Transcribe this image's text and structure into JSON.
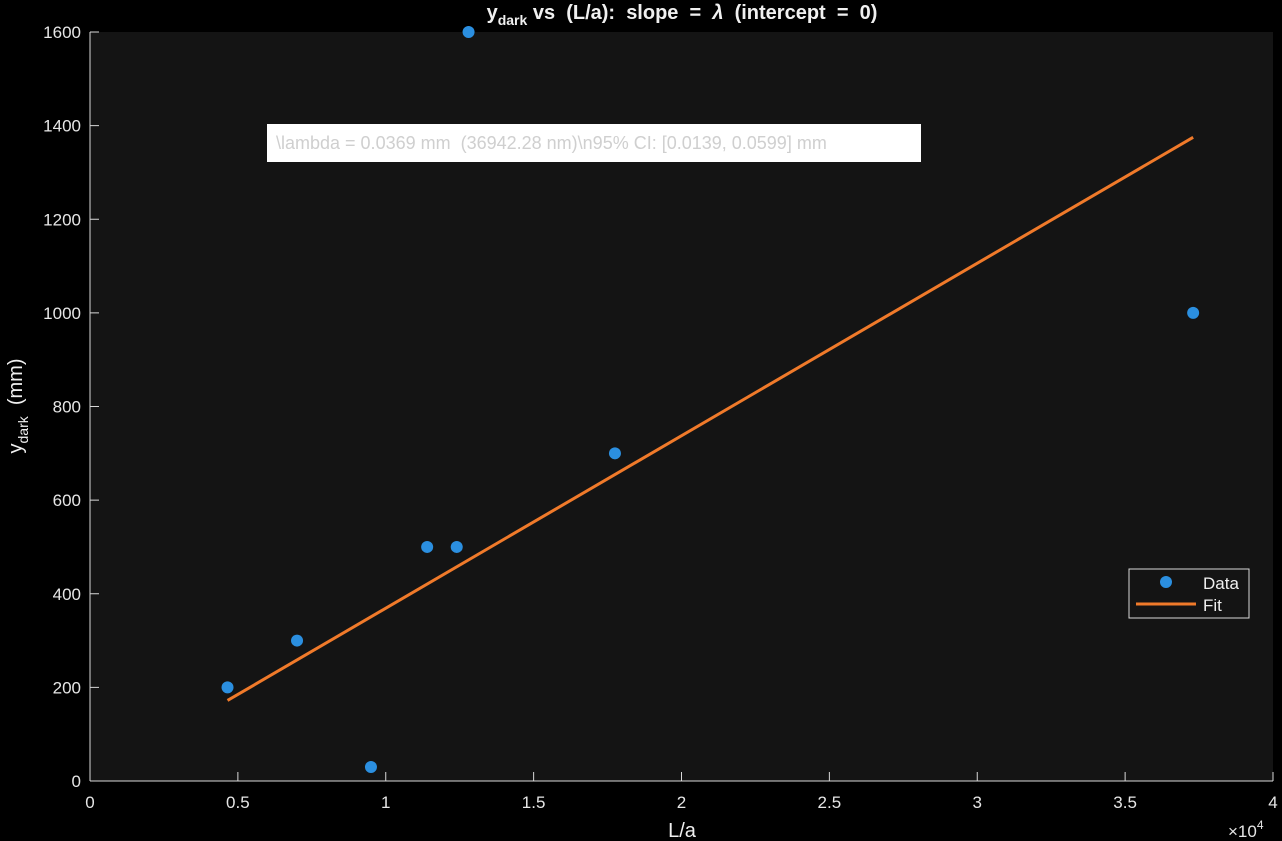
{
  "chart_data": {
    "type": "scatter",
    "title": {
      "var": "y",
      "sub": "dark",
      "rest": " vs  (L/a):  slope  =  ",
      "symbol": "λ",
      "tail": "  (intercept  =  0)"
    },
    "xlabel": "L/a",
    "ylabel": {
      "var": "y",
      "sub": "dark",
      "rest": "  (mm)"
    },
    "x_exponent_label": {
      "base": "×10",
      "exp": "4"
    },
    "xlim": [
      0,
      40000
    ],
    "ylim": [
      0,
      1600
    ],
    "x_ticks": [
      0,
      5000,
      10000,
      15000,
      20000,
      25000,
      30000,
      35000,
      40000
    ],
    "x_tick_labels": [
      "0",
      "0.5",
      "1",
      "1.5",
      "2",
      "2.5",
      "3",
      "3.5",
      "4"
    ],
    "y_ticks": [
      0,
      200,
      400,
      600,
      800,
      1000,
      1200,
      1400,
      1600
    ],
    "y_tick_labels": [
      "0",
      "200",
      "400",
      "600",
      "800",
      "1000",
      "1200",
      "1400",
      "1600"
    ],
    "grid": false,
    "legend_position": "right",
    "series": [
      {
        "name": "Data",
        "kind": "points",
        "color": "#2b8fe0",
        "x": [
          4650,
          7000,
          9500,
          11400,
          12400,
          12800,
          17750,
          37300
        ],
        "y": [
          200,
          300,
          30,
          500,
          500,
          1600,
          700,
          1000
        ]
      },
      {
        "name": "Fit",
        "kind": "line",
        "color": "#f07a2a",
        "x": [
          4650,
          37300
        ],
        "y": [
          172,
          1375
        ]
      }
    ],
    "annotation": "\\lambda = 0.0369 mm  (36942.28 nm)\\n95% CI: [0.0139, 0.0599] mm"
  },
  "colors": {
    "background": "#000000",
    "plot_area": "#141414",
    "axis": "#d9d9d9"
  }
}
